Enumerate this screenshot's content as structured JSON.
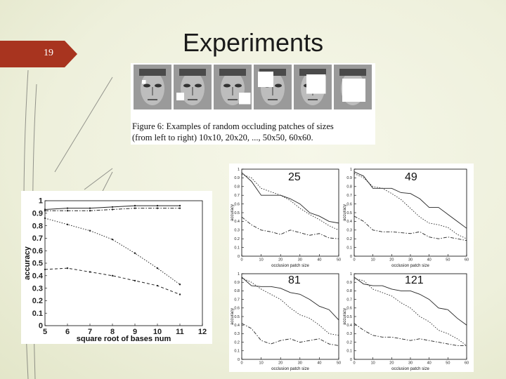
{
  "slide": {
    "number": "19",
    "title": "Experiments"
  },
  "figure6": {
    "caption_line1": "Figure 6:  Examples of random occluding patches of sizes",
    "caption_line2": "(from left to right) 10x10, 20x20, ..., 50x50, 60x60.",
    "patch_sizes": [
      10,
      20,
      30,
      40,
      50,
      60
    ]
  },
  "chart_data": [
    {
      "type": "line",
      "xlabel": "square root of bases num",
      "ylabel": "accuracy",
      "xlim": [
        5,
        12
      ],
      "ylim": [
        0,
        1
      ],
      "xticks": [
        5,
        6,
        7,
        8,
        9,
        10,
        11,
        12
      ],
      "yticks": [
        0,
        0.1,
        0.2,
        0.3,
        0.4,
        0.5,
        0.6,
        0.7,
        0.8,
        0.9,
        1
      ],
      "x": [
        5,
        6,
        7,
        8,
        9,
        10,
        11
      ],
      "series": [
        {
          "style": "solid",
          "values": [
            0.93,
            0.94,
            0.94,
            0.95,
            0.96,
            0.96,
            0.96
          ]
        },
        {
          "style": "dashdot",
          "values": [
            0.92,
            0.92,
            0.92,
            0.93,
            0.94,
            0.94,
            0.94
          ]
        },
        {
          "style": "dotted",
          "values": [
            0.86,
            0.81,
            0.76,
            0.69,
            0.58,
            0.46,
            0.33
          ]
        },
        {
          "style": "dashed",
          "values": [
            0.45,
            0.46,
            0.43,
            0.4,
            0.36,
            0.32,
            0.25
          ]
        }
      ]
    },
    {
      "type": "line",
      "label": "25",
      "xlabel": "occlusion patch size",
      "ylabel": "accuracy",
      "xlim": [
        0,
        50
      ],
      "ylim": [
        0,
        1
      ],
      "x": [
        0,
        5,
        10,
        15,
        20,
        25,
        30,
        35,
        40,
        45,
        50
      ],
      "series": [
        {
          "style": "solid",
          "values": [
            0.96,
            0.86,
            0.7,
            0.7,
            0.7,
            0.66,
            0.6,
            0.5,
            0.46,
            0.4,
            0.38
          ]
        },
        {
          "style": "dotted",
          "values": [
            0.94,
            0.9,
            0.78,
            0.74,
            0.7,
            0.64,
            0.55,
            0.48,
            0.42,
            0.35,
            0.3
          ]
        },
        {
          "style": "dashdot",
          "values": [
            0.45,
            0.36,
            0.3,
            0.28,
            0.25,
            0.3,
            0.27,
            0.24,
            0.26,
            0.21,
            0.2
          ]
        }
      ]
    },
    {
      "type": "line",
      "label": "49",
      "xlabel": "occlusion patch size",
      "ylabel": "accuracy",
      "xlim": [
        0,
        60
      ],
      "ylim": [
        0,
        1
      ],
      "x": [
        0,
        5,
        10,
        15,
        20,
        25,
        30,
        35,
        40,
        45,
        50,
        55,
        60
      ],
      "series": [
        {
          "style": "solid",
          "values": [
            0.97,
            0.92,
            0.78,
            0.78,
            0.78,
            0.73,
            0.72,
            0.66,
            0.56,
            0.56,
            0.48,
            0.4,
            0.32
          ]
        },
        {
          "style": "dotted",
          "values": [
            0.95,
            0.9,
            0.8,
            0.78,
            0.72,
            0.65,
            0.55,
            0.45,
            0.38,
            0.36,
            0.33,
            0.25,
            0.2
          ]
        },
        {
          "style": "dashdot",
          "values": [
            0.46,
            0.4,
            0.3,
            0.28,
            0.28,
            0.27,
            0.26,
            0.28,
            0.22,
            0.2,
            0.22,
            0.2,
            0.18
          ]
        }
      ]
    },
    {
      "type": "line",
      "label": "81",
      "xlabel": "occlusion patch size",
      "ylabel": "accuracy",
      "xlim": [
        0,
        50
      ],
      "ylim": [
        0,
        1
      ],
      "x": [
        0,
        5,
        10,
        15,
        20,
        25,
        30,
        35,
        40,
        45,
        50
      ],
      "series": [
        {
          "style": "solid",
          "values": [
            0.96,
            0.86,
            0.85,
            0.85,
            0.83,
            0.78,
            0.76,
            0.7,
            0.62,
            0.58,
            0.46
          ]
        },
        {
          "style": "dotted",
          "values": [
            0.95,
            0.9,
            0.82,
            0.76,
            0.7,
            0.6,
            0.52,
            0.48,
            0.4,
            0.3,
            0.28
          ]
        },
        {
          "style": "dashdot",
          "values": [
            0.42,
            0.36,
            0.22,
            0.18,
            0.22,
            0.24,
            0.2,
            0.22,
            0.24,
            0.18,
            0.16
          ]
        }
      ]
    },
    {
      "type": "line",
      "label": "121",
      "xlabel": "occlusion patch size",
      "ylabel": "accuracy",
      "xlim": [
        0,
        60
      ],
      "ylim": [
        0,
        1
      ],
      "x": [
        0,
        5,
        10,
        15,
        20,
        25,
        30,
        35,
        40,
        45,
        50,
        55,
        60
      ],
      "series": [
        {
          "style": "solid",
          "values": [
            0.96,
            0.88,
            0.86,
            0.86,
            0.82,
            0.8,
            0.8,
            0.76,
            0.7,
            0.6,
            0.58,
            0.48,
            0.4
          ]
        },
        {
          "style": "dotted",
          "values": [
            0.94,
            0.92,
            0.82,
            0.78,
            0.74,
            0.66,
            0.6,
            0.5,
            0.44,
            0.34,
            0.3,
            0.24,
            0.16
          ]
        },
        {
          "style": "dashdot",
          "values": [
            0.42,
            0.34,
            0.28,
            0.26,
            0.26,
            0.24,
            0.22,
            0.24,
            0.22,
            0.2,
            0.18,
            0.16,
            0.16
          ]
        }
      ]
    }
  ]
}
